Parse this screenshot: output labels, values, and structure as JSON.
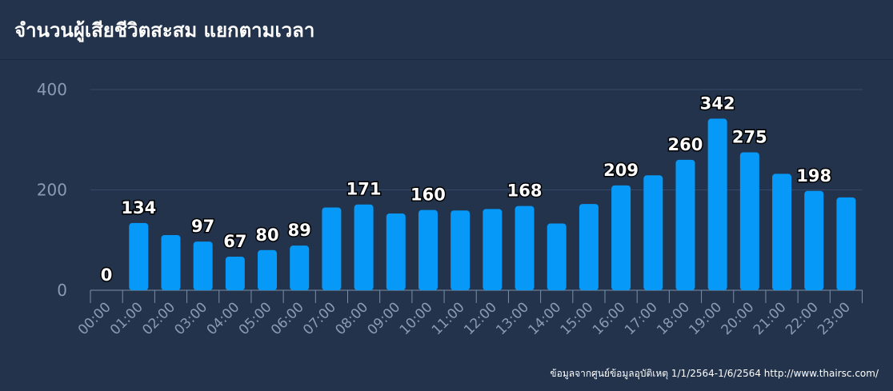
{
  "header": {
    "title": "จำนวนผู้เสียชีวิตสะสม แยกตามเวลา"
  },
  "footer": {
    "source": "ข้อมูลจากศูนย์ข้อมูลอุบัติเหตุ 1/1/2564-1/6/2564 http://www.thairsc.com/"
  },
  "colors": {
    "bar": "#0699f7",
    "background": "#22334b",
    "grid": "#34486a",
    "axis_text": "#8a9bb3"
  },
  "chart_data": {
    "type": "bar",
    "categories": [
      "00:00",
      "01:00",
      "02:00",
      "03:00",
      "04:00",
      "05:00",
      "06:00",
      "07:00",
      "08:00",
      "09:00",
      "10:00",
      "11:00",
      "12:00",
      "13:00",
      "14:00",
      "15:00",
      "16:00",
      "17:00",
      "18:00",
      "19:00",
      "20:00",
      "21:00",
      "22:00",
      "23:00"
    ],
    "values": [
      0,
      134,
      110,
      97,
      67,
      80,
      89,
      165,
      171,
      153,
      160,
      159,
      162,
      168,
      133,
      172,
      209,
      229,
      260,
      342,
      275,
      232,
      198,
      185
    ],
    "data_labels": [
      "0",
      "134",
      "",
      "97",
      "67",
      "80",
      "89",
      "",
      "171",
      "",
      "160",
      "",
      "",
      "168",
      "",
      "",
      "209",
      "",
      "260",
      "342",
      "275",
      "",
      "198",
      ""
    ],
    "ylim": [
      0,
      400
    ],
    "yticks": [
      "0",
      "200",
      "400"
    ],
    "grid": true,
    "legend": "none",
    "title": "",
    "xlabel": "",
    "ylabel": ""
  }
}
